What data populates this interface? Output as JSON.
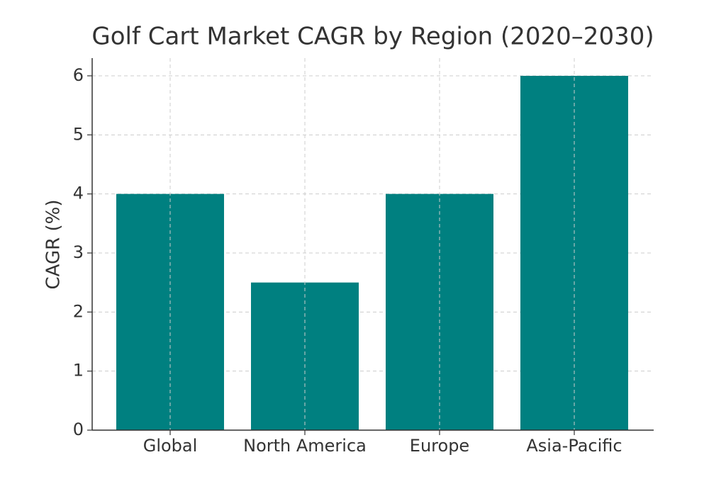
{
  "chart_data": {
    "type": "bar",
    "title": "Golf Cart Market CAGR by Region (2020–2030)",
    "y_label": "CAGR (%)",
    "categories": [
      "Global",
      "North America",
      "Europe",
      "Asia-Pacific"
    ],
    "values": [
      4,
      2.5,
      4,
      6
    ],
    "color": "#008080",
    "ylim": [
      0,
      6.3
    ],
    "yticks": [
      0,
      1,
      2,
      3,
      4,
      5,
      6
    ],
    "grid": true
  }
}
